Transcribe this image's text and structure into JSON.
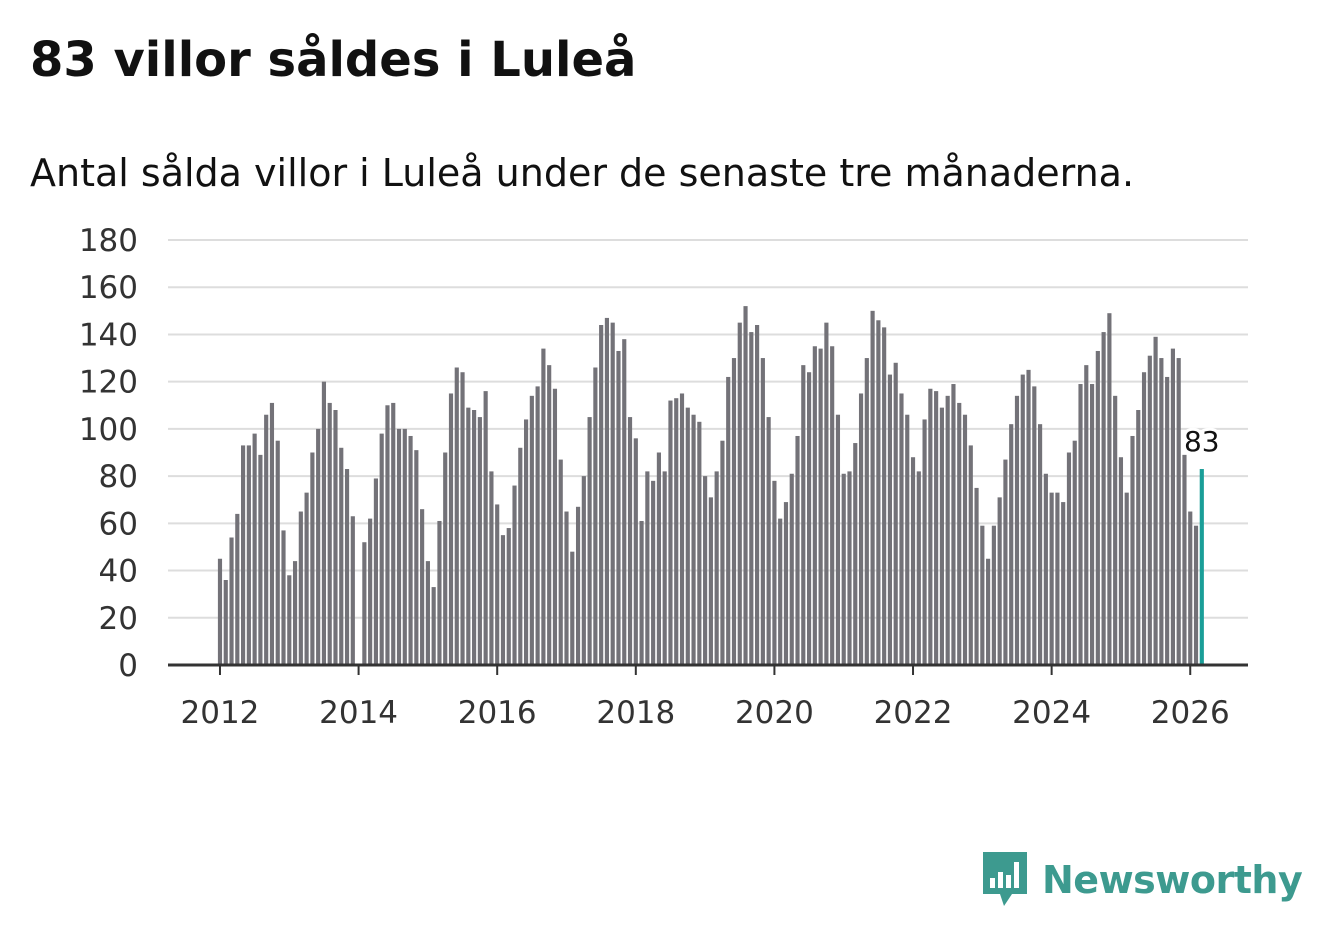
{
  "title": "83 villor såldes i Luleå",
  "subtitle": "Antal sålda villor i Luleå under de senaste tre månaderna.",
  "brand": {
    "name": "Newsworthy",
    "color": "#3d9a8f",
    "icon": "bar-chart-speech-bubble-icon"
  },
  "colors": {
    "bar": "#737278",
    "highlight": "#1a9e98",
    "grid": "#dddddd",
    "axis": "#333333"
  },
  "chart_data": {
    "type": "bar",
    "title": "83 villor såldes i Luleå",
    "subtitle": "Antal sålda villor i Luleå under de senaste tre månaderna.",
    "xlabel": "",
    "ylabel": "",
    "ylim": [
      0,
      180
    ],
    "yticks": [
      0,
      20,
      40,
      60,
      80,
      100,
      120,
      140,
      160,
      180
    ],
    "xticks": [
      "2012",
      "2014",
      "2016",
      "2018",
      "2020",
      "2022",
      "2024",
      "2026"
    ],
    "x_range": [
      "2011-04",
      "2026-11"
    ],
    "start_month": "2012-01",
    "frequency": "monthly, rolling three-month sum",
    "values": [
      45,
      36,
      54,
      64,
      93,
      93,
      98,
      89,
      106,
      111,
      95,
      57,
      38,
      44,
      65,
      73,
      90,
      100,
      120,
      111,
      108,
      92,
      83,
      63,
      null,
      52,
      62,
      79,
      98,
      110,
      111,
      100,
      100,
      97,
      91,
      66,
      44,
      33,
      61,
      90,
      115,
      126,
      124,
      109,
      108,
      105,
      116,
      82,
      68,
      55,
      58,
      76,
      92,
      104,
      114,
      118,
      134,
      127,
      117,
      87,
      65,
      48,
      67,
      80,
      105,
      126,
      144,
      147,
      145,
      133,
      138,
      105,
      96,
      61,
      82,
      78,
      90,
      82,
      112,
      113,
      115,
      109,
      106,
      103,
      80,
      71,
      82,
      95,
      122,
      130,
      145,
      152,
      141,
      144,
      130,
      105,
      78,
      62,
      69,
      81,
      97,
      127,
      124,
      135,
      134,
      145,
      135,
      106,
      81,
      82,
      94,
      115,
      130,
      150,
      146,
      143,
      123,
      128,
      115,
      106,
      88,
      82,
      104,
      117,
      116,
      109,
      114,
      119,
      111,
      106,
      93,
      75,
      59,
      45,
      59,
      71,
      87,
      102,
      114,
      123,
      125,
      118,
      102,
      81,
      73,
      73,
      69,
      90,
      95,
      119,
      127,
      119,
      133,
      141,
      149,
      114,
      88,
      73,
      97,
      108,
      124,
      131,
      139,
      130,
      122,
      134,
      130,
      89,
      65,
      59,
      83
    ],
    "highlight_index": 170,
    "highlight_label": "83"
  }
}
